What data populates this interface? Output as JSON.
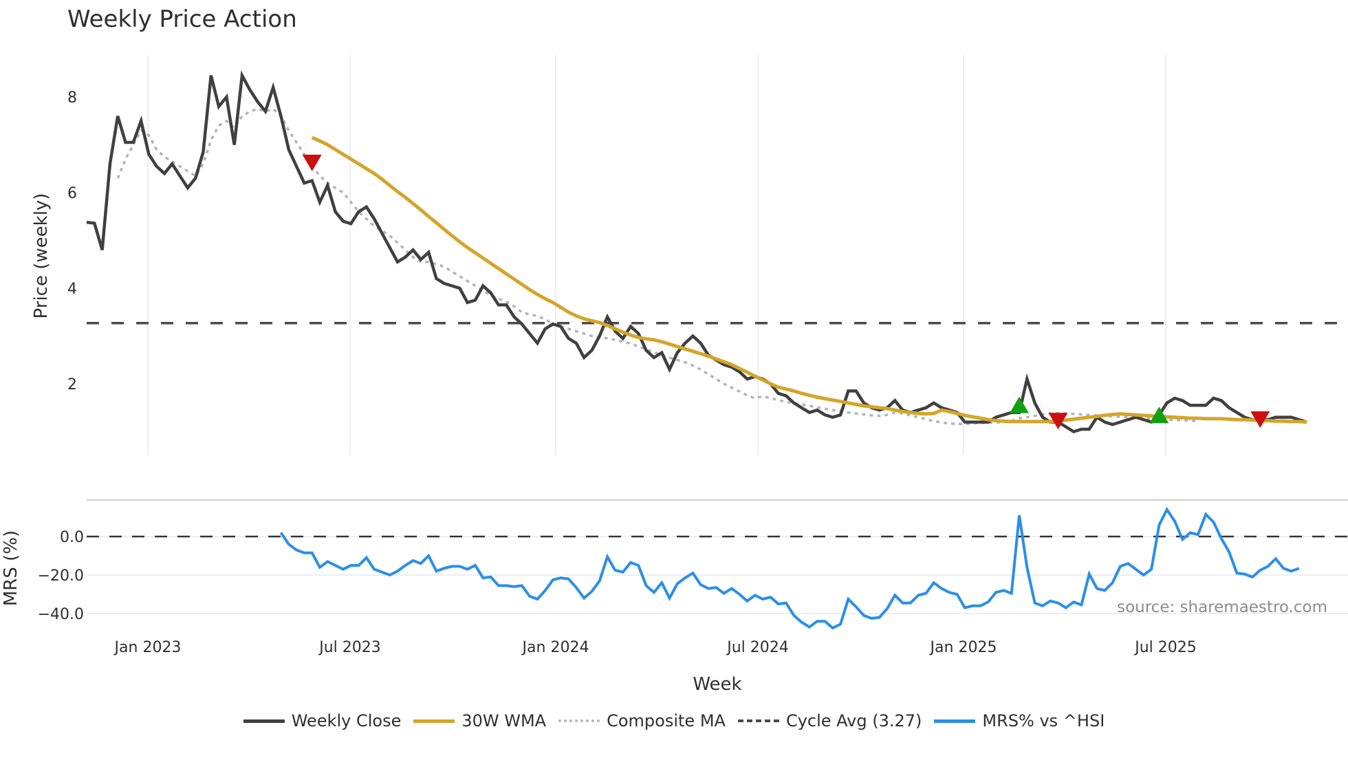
{
  "title": "Weekly Price Action",
  "colors": {
    "close": "#404040",
    "wma": "#d4a52a",
    "composite": "#b5b5b5",
    "cycle": "#4a4a4a",
    "mrs": "#2b8fe8",
    "grid": "#eceef4",
    "buy": "#12a012",
    "sell": "#cc1010"
  },
  "axes": {
    "upper_ylabel": "Price (weekly)",
    "lower_ylabel": "MRS (%)",
    "xlabel": "Week",
    "upper_yticks": [
      "2",
      "4",
      "6",
      "8"
    ],
    "lower_yticks": [
      "0.0",
      "−20.0",
      "−40.0"
    ],
    "xticks": [
      "Jan 2023",
      "Jul 2023",
      "Jan 2024",
      "Jul 2024",
      "Jan 2025",
      "Jul 2025"
    ]
  },
  "legend": [
    {
      "key": "close",
      "label": "Weekly Close"
    },
    {
      "key": "wma",
      "label": "30W WMA"
    },
    {
      "key": "composite",
      "label": "Composite MA"
    },
    {
      "key": "cycle",
      "label": "Cycle Avg (3.27)"
    },
    {
      "key": "mrs",
      "label": "MRS% vs ^HSI"
    }
  ],
  "source_text": "source: sharemaestro.com",
  "chart_data": [
    {
      "type": "line",
      "title": "Weekly Price Action",
      "xlabel": "Week",
      "ylabel": "Price (weekly)",
      "ylim": [
        0.5,
        8.8
      ],
      "grid": true,
      "legend_position": "bottom",
      "x_start": "2022-11-07",
      "x_step": "1 week",
      "xtick_labels": [
        "Jan 2023",
        "Jul 2023",
        "Jan 2024",
        "Jul 2024",
        "Jan 2025",
        "Jul 2025"
      ],
      "ytick_labels": [
        2,
        4,
        6,
        8
      ],
      "cycle_avg": 3.27,
      "series": [
        {
          "name": "Weekly Close",
          "start_index": 0,
          "values": [
            5.38,
            5.36,
            4.8,
            6.6,
            7.6,
            7.05,
            7.05,
            7.5,
            6.8,
            6.55,
            6.4,
            6.6,
            6.35,
            6.1,
            6.3,
            6.85,
            8.45,
            7.8,
            8.0,
            7.0,
            8.45,
            8.15,
            7.9,
            7.7,
            8.2,
            7.6,
            6.9,
            6.55,
            6.2,
            6.25,
            5.8,
            6.15,
            5.6,
            5.4,
            5.35,
            5.6,
            5.7,
            5.45,
            5.15,
            4.85,
            4.55,
            4.65,
            4.8,
            4.6,
            4.75,
            4.2,
            4.1,
            4.05,
            4.0,
            3.7,
            3.75,
            4.05,
            3.9,
            3.65,
            3.65,
            3.4,
            3.25,
            3.05,
            2.85,
            3.15,
            3.25,
            3.2,
            2.95,
            2.85,
            2.55,
            2.7,
            3.0,
            3.4,
            3.1,
            2.95,
            3.2,
            3.05,
            2.7,
            2.55,
            2.65,
            2.3,
            2.65,
            2.85,
            3.0,
            2.85,
            2.6,
            2.5,
            2.4,
            2.35,
            2.25,
            2.1,
            2.15,
            2.1,
            2.0,
            1.8,
            1.75,
            1.6,
            1.5,
            1.4,
            1.45,
            1.35,
            1.3,
            1.35,
            1.85,
            1.85,
            1.6,
            1.5,
            1.45,
            1.5,
            1.65,
            1.45,
            1.4,
            1.45,
            1.5,
            1.6,
            1.5,
            1.45,
            1.4,
            1.2,
            1.2,
            1.2,
            1.2,
            1.3,
            1.35,
            1.4,
            1.4,
            2.1,
            1.6,
            1.3,
            1.2,
            1.2,
            1.1,
            1.0,
            1.05,
            1.05,
            1.3,
            1.2,
            1.15,
            1.2,
            1.25,
            1.3,
            1.25,
            1.2,
            1.35,
            1.6,
            1.7,
            1.65,
            1.55,
            1.55,
            1.55,
            1.7,
            1.65,
            1.5,
            1.4,
            1.3,
            1.25,
            1.25,
            1.25,
            1.3,
            1.3,
            1.3,
            1.25,
            1.2
          ]
        },
        {
          "name": "30W WMA",
          "start_index": 29,
          "values": [
            7.15,
            7.08,
            7.0,
            6.9,
            6.8,
            6.7,
            6.6,
            6.5,
            6.4,
            6.28,
            6.15,
            6.02,
            5.9,
            5.77,
            5.64,
            5.5,
            5.37,
            5.23,
            5.1,
            4.97,
            4.85,
            4.74,
            4.63,
            4.52,
            4.41,
            4.3,
            4.19,
            4.08,
            3.97,
            3.87,
            3.78,
            3.7,
            3.6,
            3.5,
            3.42,
            3.36,
            3.32,
            3.28,
            3.22,
            3.15,
            3.08,
            3.02,
            2.97,
            2.94,
            2.92,
            2.88,
            2.83,
            2.78,
            2.73,
            2.68,
            2.63,
            2.58,
            2.52,
            2.46,
            2.4,
            2.32,
            2.24,
            2.16,
            2.08,
            2.0,
            1.93,
            1.89,
            1.85,
            1.8,
            1.76,
            1.72,
            1.69,
            1.66,
            1.63,
            1.6,
            1.57,
            1.54,
            1.52,
            1.5,
            1.48,
            1.45,
            1.42,
            1.4,
            1.38,
            1.37,
            1.38,
            1.45,
            1.42,
            1.38,
            1.34,
            1.31,
            1.28,
            1.25,
            1.23,
            1.22,
            1.21,
            1.21,
            1.21,
            1.21,
            1.21,
            1.21,
            1.22,
            1.24,
            1.26,
            1.28,
            1.3,
            1.32,
            1.34,
            1.36,
            1.37,
            1.36,
            1.35,
            1.34,
            1.33,
            1.32,
            1.31,
            1.3,
            1.29,
            1.28,
            1.28,
            1.27,
            1.27,
            1.27,
            1.26,
            1.25,
            1.25,
            1.24,
            1.23,
            1.23,
            1.22,
            1.22,
            1.21,
            1.21,
            1.2
          ]
        },
        {
          "name": "Composite MA",
          "start_index": 4,
          "values": [
            6.3,
            6.7,
            7.0,
            7.3,
            7.2,
            6.9,
            6.75,
            6.65,
            6.55,
            6.45,
            6.35,
            6.6,
            7.1,
            7.4,
            7.5,
            7.35,
            7.6,
            7.7,
            7.75,
            7.7,
            7.75,
            7.6,
            7.3,
            7.05,
            6.8,
            6.55,
            6.35,
            6.2,
            6.1,
            6.0,
            5.8,
            5.6,
            5.45,
            5.3,
            5.2,
            5.1,
            4.95,
            4.8,
            4.65,
            4.55,
            4.55,
            4.5,
            4.45,
            4.35,
            4.25,
            4.15,
            4.05,
            3.95,
            3.85,
            3.78,
            3.72,
            3.62,
            3.5,
            3.45,
            3.42,
            3.35,
            3.25,
            3.2,
            3.15,
            3.1,
            3.05,
            3.0,
            2.98,
            2.95,
            2.92,
            2.88,
            2.84,
            2.78,
            2.72,
            2.66,
            2.6,
            2.55,
            2.5,
            2.45,
            2.38,
            2.3,
            2.2,
            2.1,
            2.0,
            1.92,
            1.84,
            1.76,
            1.7,
            1.74,
            1.7,
            1.66,
            1.62,
            1.6,
            1.57,
            1.54,
            1.51,
            1.48,
            1.45,
            1.43,
            1.4,
            1.38,
            1.36,
            1.34,
            1.33,
            1.35,
            1.4,
            1.38,
            1.34,
            1.3,
            1.26,
            1.22,
            1.19,
            1.17,
            1.16,
            1.16,
            1.17,
            1.18,
            1.18,
            1.19,
            1.2,
            1.22,
            1.28,
            1.3,
            1.33,
            1.36,
            1.38,
            1.39,
            1.38,
            1.37,
            1.36,
            1.35,
            1.34,
            1.33,
            1.32,
            1.31,
            1.3,
            1.29,
            1.28,
            1.27,
            1.26,
            1.25,
            1.24,
            1.24,
            1.23,
            1.22
          ]
        },
        {
          "name": "Cycle Avg (3.27)",
          "type": "hline",
          "value": 3.27
        }
      ],
      "markers": [
        {
          "type": "sell",
          "index": 29,
          "value": 6.65
        },
        {
          "type": "buy",
          "index": 120,
          "value": 1.53
        },
        {
          "type": "sell",
          "index": 125,
          "value": 1.25
        },
        {
          "type": "buy",
          "index": 138,
          "value": 1.32
        },
        {
          "type": "sell",
          "index": 151,
          "value": 1.28
        }
      ]
    },
    {
      "type": "line",
      "ylabel": "MRS (%)",
      "xlabel": "Week",
      "ylim": [
        -53,
        18
      ],
      "ytick_labels": [
        0.0,
        -20.0,
        -40.0
      ],
      "zero_line": 0,
      "series": [
        {
          "name": "MRS% vs ^HSI",
          "start_index": 25,
          "values": [
            2,
            -4,
            -7,
            -8.5,
            -8.5,
            -16,
            -13,
            -15,
            -17,
            -15,
            -15,
            -11,
            -17,
            -18.5,
            -20,
            -18,
            -15,
            -12.5,
            -14,
            -10,
            -18,
            -16.5,
            -15.5,
            -15.5,
            -17,
            -15,
            -21.5,
            -21,
            -25.5,
            -25.5,
            -26,
            -25.5,
            -31,
            -32.5,
            -28,
            -22.5,
            -21.5,
            -22,
            -26.5,
            -32,
            -28.5,
            -23,
            -10.5,
            -17.5,
            -18.5,
            -13.5,
            -15,
            -25.5,
            -29,
            -24,
            -32,
            -24.5,
            -21.5,
            -19,
            -25,
            -27,
            -26.5,
            -29.5,
            -27,
            -30,
            -33.5,
            -30.5,
            -32.5,
            -31.5,
            -35,
            -34.5,
            -41,
            -44.5,
            -47,
            -44,
            -44,
            -47.5,
            -45.5,
            -32.5,
            -36.5,
            -41,
            -42.5,
            -42,
            -37.5,
            -30.5,
            -34.5,
            -34.5,
            -30.5,
            -29.5,
            -24,
            -27,
            -29,
            -30,
            -37,
            -36,
            -36,
            -34,
            -29,
            -28,
            -29.5,
            11,
            -16,
            -34.5,
            -36,
            -33.5,
            -34.5,
            -37,
            -34,
            -35.5,
            -19.5,
            -27,
            -28,
            -24,
            -15.5,
            -14,
            -17,
            -20,
            -17,
            6,
            14,
            8,
            -1.5,
            2,
            1,
            11.5,
            7.5,
            -1,
            -8,
            -19,
            -19.5,
            -21,
            -17.5,
            -15.5,
            -11.5,
            -16.5,
            -18,
            -16.5
          ]
        }
      ]
    }
  ]
}
